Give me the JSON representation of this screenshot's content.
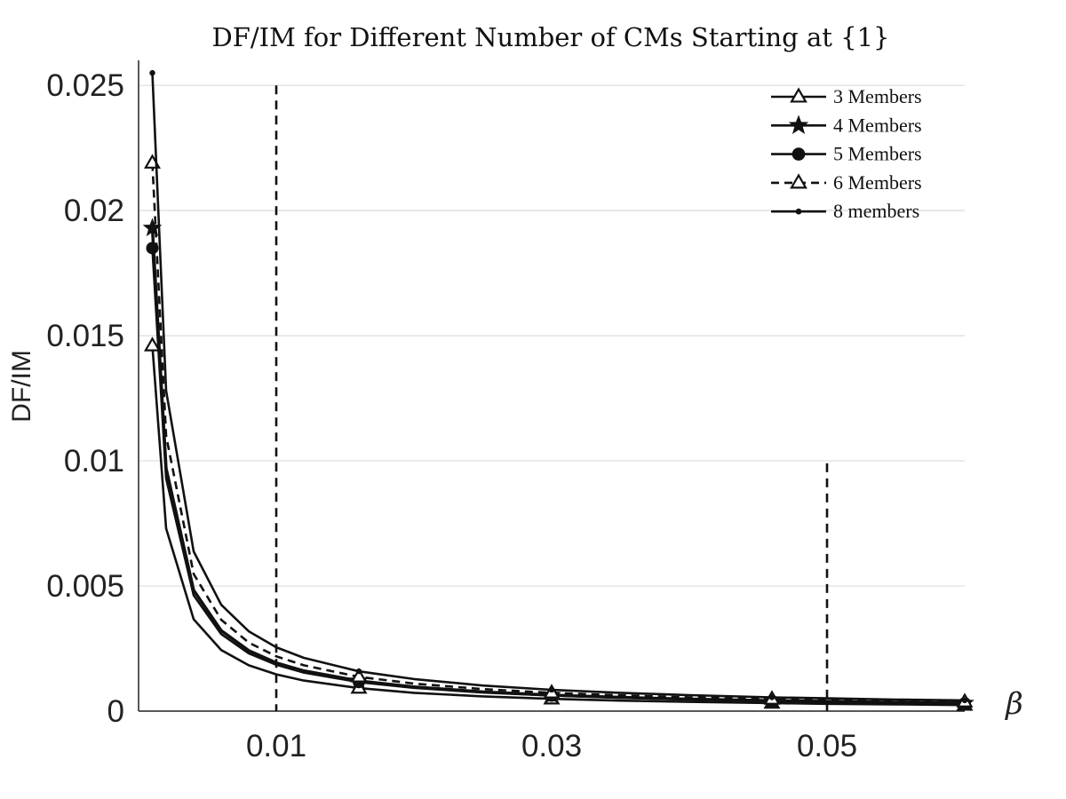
{
  "chart_data": {
    "type": "line",
    "title": "DF/IM for Different Number of CMs Starting at {1}",
    "xlabel": "β",
    "ylabel": "DF/IM",
    "xlim": [
      0,
      0.06
    ],
    "ylim": [
      0,
      0.026
    ],
    "x_ticks": [
      0.01,
      0.03,
      0.05
    ],
    "x_tick_labels": [
      "0.01",
      "0.03",
      "0.05"
    ],
    "y_ticks": [
      0,
      0.005,
      0.01,
      0.015,
      0.02,
      0.025
    ],
    "y_tick_labels": [
      "0",
      "0.005",
      "0.01",
      "0.015",
      "0.02",
      "0.025"
    ],
    "grid": "horizontal",
    "legend_position": "top-right",
    "reference_lines": [
      {
        "x": 0.01,
        "y_top": 0.025,
        "style": "dashed"
      },
      {
        "x": 0.05,
        "y_top": 0.0099,
        "style": "dashed"
      }
    ],
    "series": [
      {
        "name": "3 Members",
        "marker": "triangle-open",
        "line_style": "solid",
        "x": [
          0.001,
          0.002,
          0.004,
          0.006,
          0.008,
          0.01,
          0.012,
          0.016,
          0.02,
          0.025,
          0.03,
          0.035,
          0.04,
          0.046,
          0.05,
          0.055,
          0.06
        ],
        "y": [
          0.0146,
          0.0073,
          0.00367,
          0.00244,
          0.00183,
          0.00147,
          0.00122,
          0.00092,
          0.00073,
          0.00059,
          0.00049,
          0.00042,
          0.00037,
          0.00032,
          0.00029,
          0.00027,
          0.00024
        ],
        "marker_indices": [
          0,
          7,
          10,
          13,
          16
        ]
      },
      {
        "name": "4 Members",
        "marker": "star",
        "line_style": "solid",
        "x": [
          0.001,
          0.002,
          0.004,
          0.006,
          0.008,
          0.01,
          0.012,
          0.016,
          0.02,
          0.025,
          0.03,
          0.035,
          0.04,
          0.046,
          0.05,
          0.055,
          0.06
        ],
        "y": [
          0.0193,
          0.0097,
          0.00483,
          0.00322,
          0.00242,
          0.00193,
          0.00161,
          0.00121,
          0.00097,
          0.00077,
          0.00064,
          0.00055,
          0.00048,
          0.00042,
          0.00039,
          0.00035,
          0.00032
        ],
        "marker_indices": [
          0,
          7,
          10,
          13,
          16
        ]
      },
      {
        "name": "5 Members",
        "marker": "circle-filled",
        "line_style": "solid",
        "x": [
          0.001,
          0.002,
          0.004,
          0.006,
          0.008,
          0.01,
          0.012,
          0.016,
          0.02,
          0.025,
          0.03,
          0.035,
          0.04,
          0.046,
          0.05,
          0.055,
          0.06
        ],
        "y": [
          0.0185,
          0.0093,
          0.00463,
          0.00308,
          0.00231,
          0.00185,
          0.00154,
          0.00116,
          0.00093,
          0.00074,
          0.00062,
          0.00053,
          0.00046,
          0.0004,
          0.00037,
          0.00034,
          0.00031
        ],
        "marker_indices": [
          0,
          7,
          10,
          13,
          16
        ]
      },
      {
        "name": "6 Members",
        "marker": "triangle-open",
        "line_style": "dashed",
        "x": [
          0.001,
          0.002,
          0.004,
          0.006,
          0.008,
          0.01,
          0.012,
          0.016,
          0.02,
          0.025,
          0.03,
          0.035,
          0.04,
          0.046,
          0.05,
          0.055,
          0.06
        ],
        "y": [
          0.0219,
          0.011,
          0.00548,
          0.00365,
          0.00274,
          0.00219,
          0.00183,
          0.00137,
          0.0011,
          0.00088,
          0.00073,
          0.00063,
          0.00055,
          0.00048,
          0.00044,
          0.0004,
          0.00037
        ],
        "marker_indices": [
          0,
          7,
          10,
          13,
          16
        ]
      },
      {
        "name": "8 members",
        "marker": "dot",
        "line_style": "solid",
        "x": [
          0.001,
          0.002,
          0.004,
          0.006,
          0.008,
          0.01,
          0.012,
          0.016,
          0.02,
          0.025,
          0.03,
          0.035,
          0.04,
          0.046,
          0.05,
          0.055,
          0.06
        ],
        "y": [
          0.0255,
          0.0128,
          0.00638,
          0.00425,
          0.00319,
          0.00255,
          0.00213,
          0.00159,
          0.00128,
          0.00102,
          0.00085,
          0.00073,
          0.00064,
          0.00055,
          0.00051,
          0.00046,
          0.00043
        ],
        "marker_indices": [
          0,
          7,
          10,
          13,
          16
        ]
      }
    ]
  }
}
